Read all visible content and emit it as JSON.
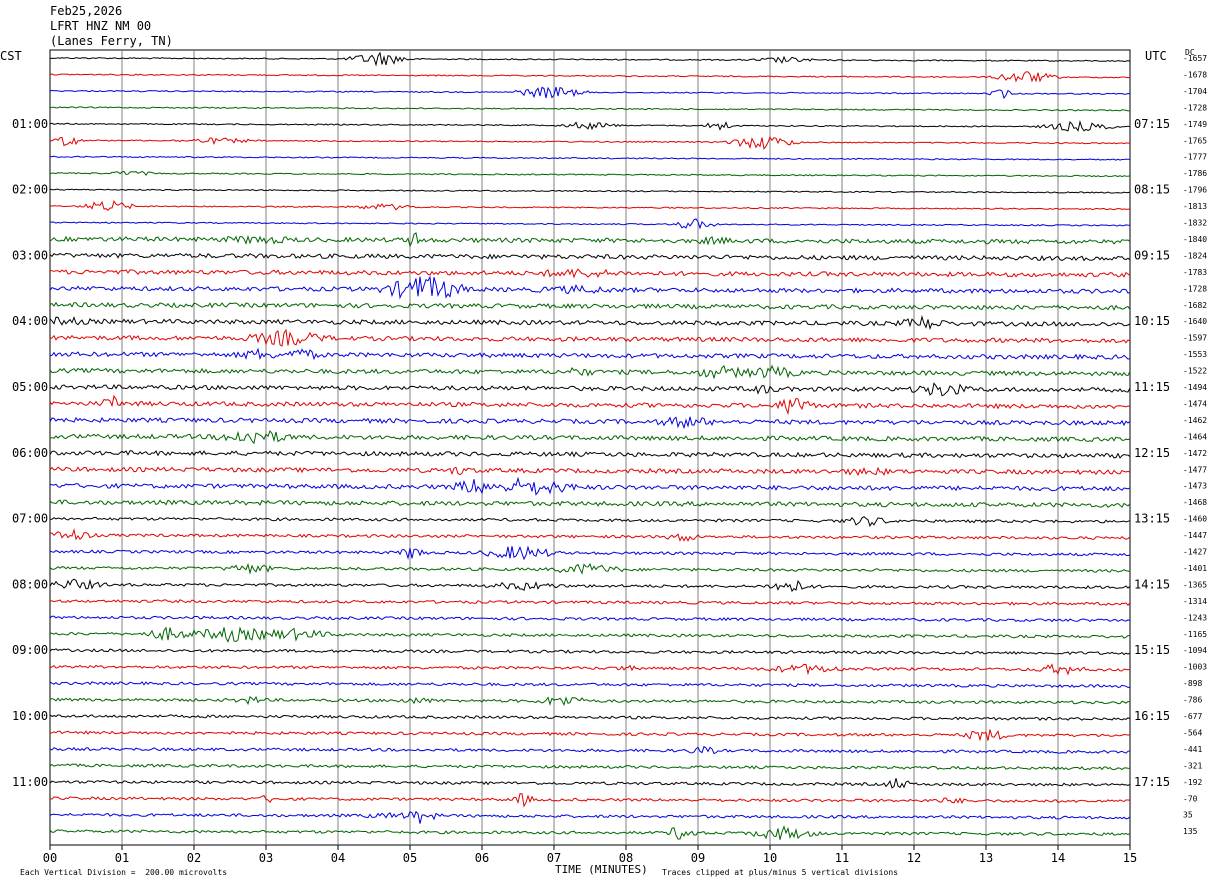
{
  "header": {
    "date": "Feb25,2026",
    "station": "LFRT HNZ NM 00",
    "location": "(Lanes Ferry, TN)"
  },
  "left_axis_title": "CST",
  "right_axis_title": "UTC",
  "dc_title": "DC",
  "chart_data": {
    "type": "line",
    "title": "",
    "xlabel": "TIME (MINUTES)",
    "ylabel": "",
    "xlim": [
      0,
      15
    ],
    "x_ticks": [
      "00",
      "01",
      "02",
      "03",
      "04",
      "05",
      "06",
      "07",
      "08",
      "09",
      "10",
      "11",
      "12",
      "13",
      "14",
      "15"
    ],
    "left_time_labels": [
      "01:00",
      "02:00",
      "03:00",
      "04:00",
      "05:00",
      "06:00",
      "07:00",
      "08:00",
      "09:00",
      "10:00",
      "11:00"
    ],
    "right_time_labels": [
      "07:15",
      "08:15",
      "09:15",
      "10:15",
      "11:15",
      "12:15",
      "13:15",
      "14:15",
      "15:15",
      "16:15",
      "17:15"
    ],
    "trace_colors": [
      "#000000",
      "#e00000",
      "#0000e0",
      "#006400"
    ],
    "dc_offsets": [
      "-1657",
      "-1678",
      "-1704",
      "-1728",
      "-1749",
      "-1765",
      "-1777",
      "-1786",
      "-1796",
      "-1813",
      "-1832",
      "-1840",
      "-1824",
      "-1783",
      "-1728",
      "-1682",
      "-1640",
      "-1597",
      "-1553",
      "-1522",
      "-1494",
      "-1474",
      "-1462",
      "-1464",
      "-1472",
      "-1477",
      "-1473",
      "-1468",
      "-1460",
      "-1447",
      "-1427",
      "-1401",
      "-1365",
      "-1314",
      "-1243",
      "-1165",
      "-1094",
      "-1003",
      "-898",
      "-786",
      "-677",
      "-564",
      "-441",
      "-321",
      "-192",
      "-70",
      "35",
      "135"
    ],
    "grid": true
  },
  "footer": {
    "vertical_division": "Each Vertical Division =  200.00 microvolts",
    "clip_note": "Traces clipped at plus/minus 5 vertical divisions"
  }
}
